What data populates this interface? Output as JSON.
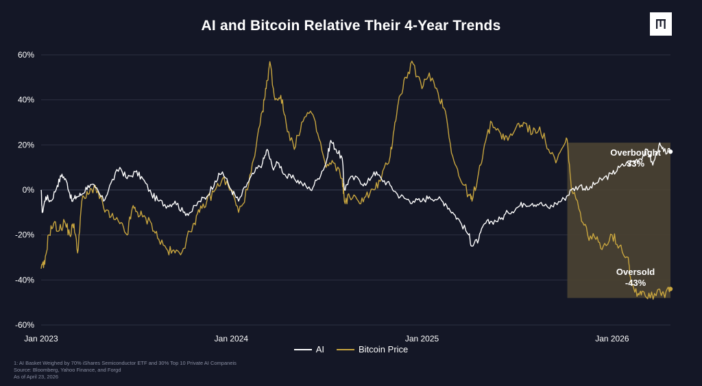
{
  "title": "AI and Bitcoin Relative Their 4-Year Trends",
  "logo_icon": "pitchbook-style-bars-logo",
  "colors": {
    "background": "#141726",
    "ai": "#ffffff",
    "bitcoin": "#c9a63f",
    "highlight": "#4a4232",
    "grid": "#2c3042",
    "text": "#ffffff",
    "footnote": "#8a8fa3"
  },
  "legend": {
    "ai_label": "AI",
    "bitcoin_label": "Bitcoin Price"
  },
  "footnotes": [
    "1: AI Basket Weighed by 70% iShares Semiconductor ETF and 30% Top 10 Private AI Companeis",
    "Source: Bloomberg, Yahoo Finance, and Forgd",
    "As of April 23, 2026"
  ],
  "chart_data": {
    "type": "line",
    "title": "AI and Bitcoin Relative Their 4-Year Trends",
    "xlabel": "",
    "ylabel": "",
    "ylim": [
      -60,
      60
    ],
    "xlim": [
      "2023-01-01",
      "2026-04-23"
    ],
    "y_ticks": [
      60,
      40,
      20,
      0,
      -20,
      -40,
      -60
    ],
    "y_tick_labels": [
      "60%",
      "40%",
      "20%",
      "0%",
      "-20%",
      "-40%",
      "-60%"
    ],
    "x_ticks": [
      "2023-01-01",
      "2024-01-01",
      "2025-01-01",
      "2026-01-01"
    ],
    "x_tick_labels": [
      "Jan 2023",
      "Jan 2024",
      "Jan 2025",
      "Jan 2026"
    ],
    "grid": "horizontal",
    "legend_position": "bottom-center",
    "series": [
      {
        "name": "AI",
        "color": "#ffffff",
        "points": [
          [
            "2023-01-01",
            0
          ],
          [
            "2023-01-03",
            -10
          ],
          [
            "2023-01-10",
            -3
          ],
          [
            "2023-01-20",
            -5
          ],
          [
            "2023-02-01",
            2
          ],
          [
            "2023-02-10",
            7
          ],
          [
            "2023-02-20",
            3
          ],
          [
            "2023-03-01",
            -5
          ],
          [
            "2023-03-10",
            -3
          ],
          [
            "2023-03-20",
            -2
          ],
          [
            "2023-04-01",
            2
          ],
          [
            "2023-04-15",
            1
          ],
          [
            "2023-05-01",
            -5
          ],
          [
            "2023-05-15",
            3
          ],
          [
            "2023-06-01",
            10
          ],
          [
            "2023-06-15",
            5
          ],
          [
            "2023-07-01",
            8
          ],
          [
            "2023-07-15",
            5
          ],
          [
            "2023-08-01",
            -2
          ],
          [
            "2023-08-15",
            -5
          ],
          [
            "2023-09-01",
            -7
          ],
          [
            "2023-09-15",
            -5
          ],
          [
            "2023-10-01",
            -10
          ],
          [
            "2023-10-15",
            -10
          ],
          [
            "2023-11-01",
            -5
          ],
          [
            "2023-11-15",
            -3
          ],
          [
            "2023-12-01",
            4
          ],
          [
            "2023-12-15",
            8
          ],
          [
            "2024-01-01",
            0
          ],
          [
            "2024-01-15",
            -5
          ],
          [
            "2024-02-01",
            3
          ],
          [
            "2024-02-15",
            8
          ],
          [
            "2024-03-01",
            12
          ],
          [
            "2024-03-10",
            18
          ],
          [
            "2024-03-20",
            10
          ],
          [
            "2024-04-01",
            12
          ],
          [
            "2024-04-15",
            6
          ],
          [
            "2024-05-01",
            5
          ],
          [
            "2024-05-15",
            3
          ],
          [
            "2024-06-01",
            0
          ],
          [
            "2024-06-15",
            5
          ],
          [
            "2024-07-01",
            12
          ],
          [
            "2024-07-10",
            22
          ],
          [
            "2024-07-20",
            18
          ],
          [
            "2024-08-01",
            14
          ],
          [
            "2024-08-05",
            0
          ],
          [
            "2024-08-15",
            5
          ],
          [
            "2024-09-01",
            5
          ],
          [
            "2024-09-15",
            2
          ],
          [
            "2024-10-01",
            8
          ],
          [
            "2024-10-15",
            5
          ],
          [
            "2024-11-01",
            2
          ],
          [
            "2024-11-15",
            -2
          ],
          [
            "2024-12-01",
            -4
          ],
          [
            "2024-12-15",
            -5
          ],
          [
            "2025-01-01",
            -5
          ],
          [
            "2025-01-15",
            -3
          ],
          [
            "2025-02-01",
            -4
          ],
          [
            "2025-02-15",
            -6
          ],
          [
            "2025-03-01",
            -10
          ],
          [
            "2025-03-15",
            -14
          ],
          [
            "2025-04-01",
            -20
          ],
          [
            "2025-04-07",
            -25
          ],
          [
            "2025-04-20",
            -22
          ],
          [
            "2025-05-01",
            -15
          ],
          [
            "2025-05-15",
            -14
          ],
          [
            "2025-06-01",
            -13
          ],
          [
            "2025-06-15",
            -10
          ],
          [
            "2025-07-01",
            -8
          ],
          [
            "2025-07-15",
            -6
          ],
          [
            "2025-08-01",
            -6
          ],
          [
            "2025-08-15",
            -6
          ],
          [
            "2025-09-01",
            -8
          ],
          [
            "2025-09-15",
            -6
          ],
          [
            "2025-10-01",
            -4
          ],
          [
            "2025-10-15",
            0
          ],
          [
            "2025-11-01",
            2
          ],
          [
            "2025-11-15",
            0
          ],
          [
            "2025-12-01",
            3
          ],
          [
            "2025-12-15",
            5
          ],
          [
            "2026-01-01",
            7
          ],
          [
            "2026-01-15",
            10
          ],
          [
            "2026-02-01",
            12
          ],
          [
            "2026-02-15",
            13
          ],
          [
            "2026-03-01",
            15
          ],
          [
            "2026-03-10",
            18
          ],
          [
            "2026-03-20",
            11
          ],
          [
            "2026-04-01",
            20
          ],
          [
            "2026-04-10",
            17
          ],
          [
            "2026-04-23",
            17
          ]
        ]
      },
      {
        "name": "Bitcoin Price",
        "color": "#c9a63f",
        "points": [
          [
            "2023-01-01",
            -35
          ],
          [
            "2023-01-08",
            -33
          ],
          [
            "2023-01-15",
            -20
          ],
          [
            "2023-01-25",
            -15
          ],
          [
            "2023-02-05",
            -18
          ],
          [
            "2023-02-15",
            -14
          ],
          [
            "2023-02-25",
            -20
          ],
          [
            "2023-03-05",
            -15
          ],
          [
            "2023-03-12",
            -28
          ],
          [
            "2023-03-20",
            -5
          ],
          [
            "2023-04-01",
            -2
          ],
          [
            "2023-04-15",
            2
          ],
          [
            "2023-05-01",
            -8
          ],
          [
            "2023-05-15",
            -12
          ],
          [
            "2023-06-01",
            -15
          ],
          [
            "2023-06-15",
            -20
          ],
          [
            "2023-06-25",
            -8
          ],
          [
            "2023-07-05",
            -10
          ],
          [
            "2023-07-15",
            -12
          ],
          [
            "2023-08-01",
            -15
          ],
          [
            "2023-08-15",
            -22
          ],
          [
            "2023-09-01",
            -27
          ],
          [
            "2023-09-15",
            -28
          ],
          [
            "2023-10-01",
            -26
          ],
          [
            "2023-10-20",
            -15
          ],
          [
            "2023-11-01",
            -10
          ],
          [
            "2023-11-15",
            -5
          ],
          [
            "2023-12-01",
            0
          ],
          [
            "2023-12-15",
            5
          ],
          [
            "2024-01-01",
            0
          ],
          [
            "2024-01-15",
            -10
          ],
          [
            "2024-02-01",
            0
          ],
          [
            "2024-02-15",
            15
          ],
          [
            "2024-03-01",
            35
          ],
          [
            "2024-03-08",
            45
          ],
          [
            "2024-03-15",
            57
          ],
          [
            "2024-03-25",
            40
          ],
          [
            "2024-04-05",
            42
          ],
          [
            "2024-04-15",
            30
          ],
          [
            "2024-05-01",
            18
          ],
          [
            "2024-05-15",
            30
          ],
          [
            "2024-06-01",
            35
          ],
          [
            "2024-06-15",
            25
          ],
          [
            "2024-07-01",
            10
          ],
          [
            "2024-07-15",
            12
          ],
          [
            "2024-08-01",
            5
          ],
          [
            "2024-08-05",
            -5
          ],
          [
            "2024-08-15",
            -3
          ],
          [
            "2024-09-01",
            -5
          ],
          [
            "2024-09-15",
            -3
          ],
          [
            "2024-10-01",
            0
          ],
          [
            "2024-10-15",
            5
          ],
          [
            "2024-11-01",
            15
          ],
          [
            "2024-11-10",
            30
          ],
          [
            "2024-11-20",
            42
          ],
          [
            "2024-12-01",
            50
          ],
          [
            "2024-12-15",
            56
          ],
          [
            "2025-01-01",
            45
          ],
          [
            "2025-01-15",
            52
          ],
          [
            "2025-02-01",
            43
          ],
          [
            "2025-02-15",
            35
          ],
          [
            "2025-03-01",
            15
          ],
          [
            "2025-03-15",
            5
          ],
          [
            "2025-04-01",
            -2
          ],
          [
            "2025-04-07",
            -5
          ],
          [
            "2025-04-20",
            8
          ],
          [
            "2025-05-01",
            20
          ],
          [
            "2025-05-15",
            30
          ],
          [
            "2025-06-01",
            25
          ],
          [
            "2025-06-15",
            22
          ],
          [
            "2025-07-01",
            28
          ],
          [
            "2025-07-15",
            30
          ],
          [
            "2025-08-01",
            25
          ],
          [
            "2025-08-15",
            28
          ],
          [
            "2025-09-01",
            18
          ],
          [
            "2025-09-15",
            12
          ],
          [
            "2025-10-01",
            20
          ],
          [
            "2025-10-07",
            22
          ],
          [
            "2025-10-15",
            0
          ],
          [
            "2025-11-01",
            -10
          ],
          [
            "2025-11-15",
            -20
          ],
          [
            "2025-12-01",
            -22
          ],
          [
            "2025-12-15",
            -25
          ],
          [
            "2026-01-01",
            -20
          ],
          [
            "2026-01-15",
            -25
          ],
          [
            "2026-02-01",
            -30
          ],
          [
            "2026-02-07",
            -42
          ],
          [
            "2026-02-20",
            -46
          ],
          [
            "2026-03-01",
            -45
          ],
          [
            "2026-03-15",
            -48
          ],
          [
            "2026-04-01",
            -44
          ],
          [
            "2026-04-10",
            -46
          ],
          [
            "2026-04-23",
            -44
          ]
        ]
      }
    ],
    "highlight_region": {
      "x_start": "2025-10-07",
      "x_end": "2026-04-23",
      "y_low": -48,
      "y_high": 21
    },
    "annotations": [
      {
        "text_lines": [
          "Overbought",
          "33%"
        ],
        "series": "AI",
        "x": "2026-02-15",
        "y": 14
      },
      {
        "text_lines": [
          "Oversold",
          "-43%"
        ],
        "series": "Bitcoin Price",
        "x": "2026-02-15",
        "y": -42
      }
    ],
    "end_markers": [
      {
        "series": "AI",
        "x": "2026-04-23",
        "y": 17
      },
      {
        "series": "Bitcoin Price",
        "x": "2026-04-23",
        "y": -44
      }
    ]
  }
}
